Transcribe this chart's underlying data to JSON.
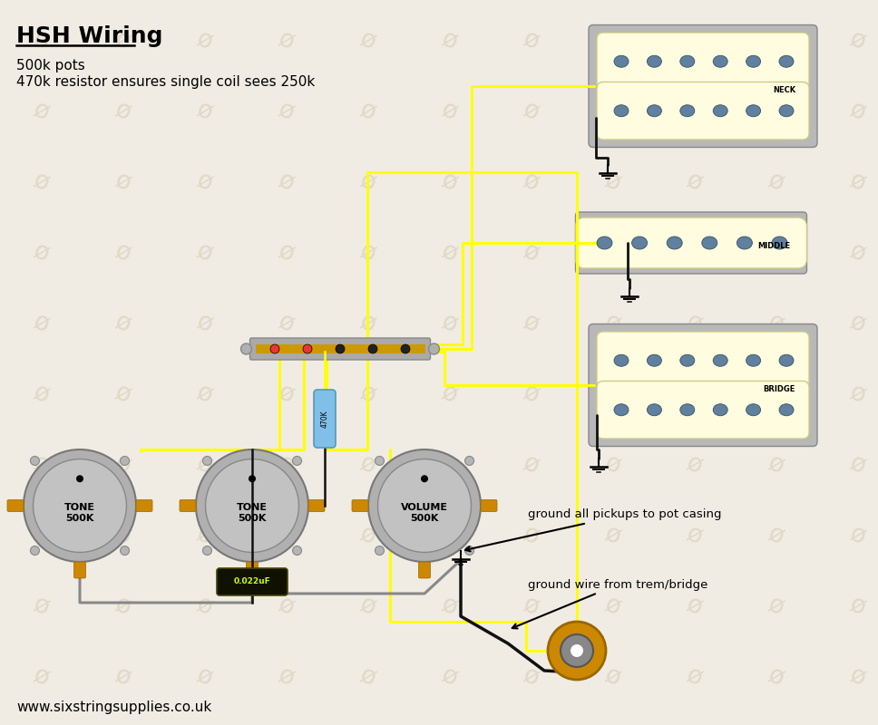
{
  "title": "HSH Wiring",
  "subtitle1": "500k pots",
  "subtitle2": "470k resistor ensures single coil sees 250k",
  "footer": "www.sixstringsupplies.co.uk",
  "bg_color": "#f0ece4",
  "wm_color": "#ddd5c0",
  "cream": "#fffce0",
  "mount_gray": "#b8b8b8",
  "pole_blue": "#6080a0",
  "yellow": "#ffff00",
  "black": "#111111",
  "gray": "#888888",
  "blue_res": "#80c0e8",
  "pot_body": "#b0b0b0",
  "lug_orange": "#cc8800",
  "cap_bg": "#111100",
  "cap_text": "#ccff00",
  "switch_gray": "#aaaaaa",
  "switch_orange": "#cc9900",
  "jack_ring": "#cc8800",
  "note1": "ground all pickups to pot casing",
  "note2": "ground wire from trem/bridge",
  "neck_lbl": "NECK",
  "mid_lbl": "MIDDLE",
  "bridge_lbl": "BRIDGE",
  "t1_lbl": "TONE\n500K",
  "t2_lbl": "TONE\n500K",
  "vol_lbl": "VOLUME\n500K",
  "cap_lbl": "0.022uF",
  "res_lbl": "470K"
}
